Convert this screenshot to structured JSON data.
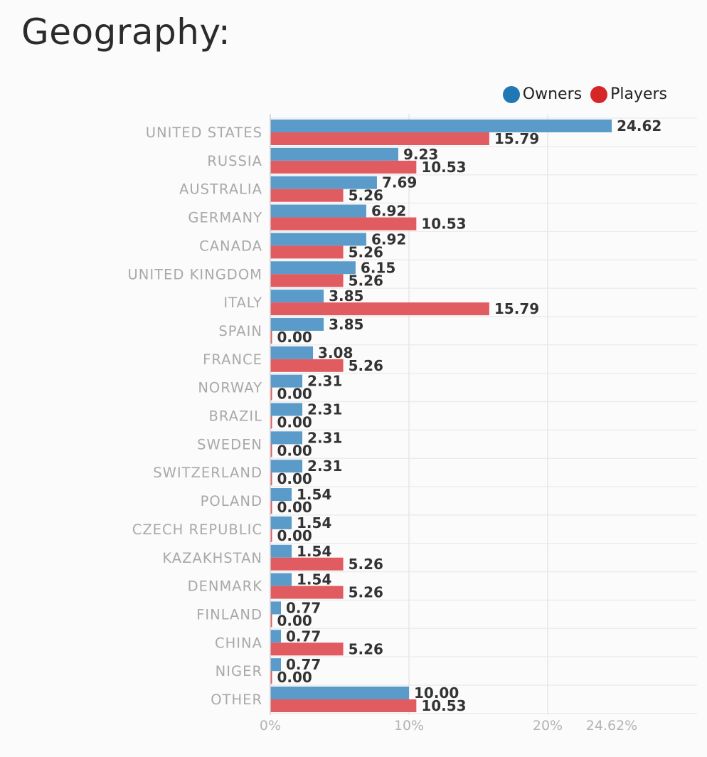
{
  "page": {
    "title": "Geography:"
  },
  "chart_data": {
    "type": "bar",
    "orientation": "horizontal",
    "title": "",
    "xlabel": "",
    "ylabel": "",
    "xlim": [
      0,
      30
    ],
    "x_ticks": [
      "0%",
      "10%",
      "20%",
      "24.62%"
    ],
    "x_tick_values": [
      0,
      10,
      20,
      24.62
    ],
    "grid": true,
    "legend_placement": "top-right",
    "categories": [
      "UNITED STATES",
      "RUSSIA",
      "AUSTRALIA",
      "GERMANY",
      "CANADA",
      "UNITED KINGDOM",
      "ITALY",
      "SPAIN",
      "FRANCE",
      "NORWAY",
      "BRAZIL",
      "SWEDEN",
      "SWITZERLAND",
      "POLAND",
      "CZECH REPUBLIC",
      "KAZAKHSTAN",
      "DENMARK",
      "FINLAND",
      "CHINA",
      "NIGER",
      "OTHER"
    ],
    "series": [
      {
        "name": "Owners",
        "color": "#5b9bca",
        "legend_color": "#1f77b4",
        "values": [
          24.62,
          9.23,
          7.69,
          6.92,
          6.92,
          6.15,
          3.85,
          3.85,
          3.08,
          2.31,
          2.31,
          2.31,
          2.31,
          1.54,
          1.54,
          1.54,
          1.54,
          0.77,
          0.77,
          0.77,
          10.0
        ],
        "labels": [
          "24.62",
          "9.23",
          "7.69",
          "6.92",
          "6.92",
          "6.15",
          "3.85",
          "3.85",
          "3.08",
          "2.31",
          "2.31",
          "2.31",
          "2.31",
          "1.54",
          "1.54",
          "1.54",
          "1.54",
          "0.77",
          "0.77",
          "0.77",
          "10.00"
        ]
      },
      {
        "name": "Players",
        "color": "#e05c61",
        "legend_color": "#d62728",
        "values": [
          15.79,
          10.53,
          5.26,
          10.53,
          5.26,
          5.26,
          15.79,
          0.0,
          5.26,
          0.0,
          0.0,
          0.0,
          0.0,
          0.0,
          0.0,
          5.26,
          5.26,
          0.0,
          5.26,
          0.0,
          10.53
        ],
        "labels": [
          "15.79",
          "10.53",
          "5.26",
          "10.53",
          "5.26",
          "5.26",
          "15.79",
          "0.00",
          "5.26",
          "0.00",
          "0.00",
          "0.00",
          "0.00",
          "0.00",
          "0.00",
          "5.26",
          "5.26",
          "0.00",
          "5.26",
          "0.00",
          "10.53"
        ]
      }
    ]
  }
}
